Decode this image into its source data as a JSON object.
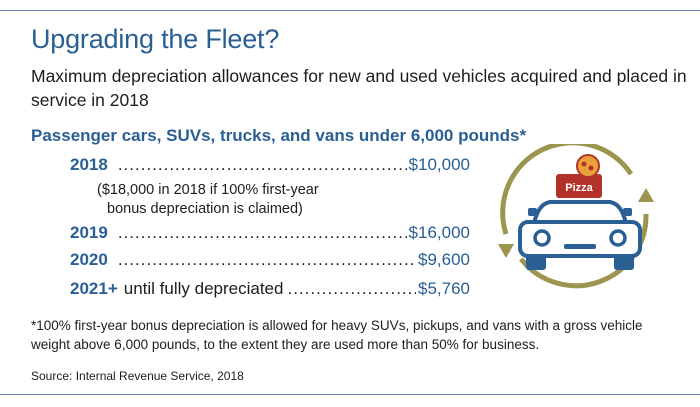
{
  "title": "Upgrading the Fleet?",
  "subtitle": "Maximum depreciation allowances for new and used vehicles acquired and placed in service in 2018",
  "section_heading": "Passenger cars, SUVs, trucks, and vans under 6,000 pounds*",
  "rows": [
    {
      "year": "2018",
      "qualifier": "",
      "amount": "$10,000"
    },
    {
      "year": "2019",
      "qualifier": "",
      "amount": "$16,000"
    },
    {
      "year": "2020",
      "qualifier": "",
      "amount": "$9,600"
    },
    {
      "year": "2021+",
      "qualifier": "until fully depreciated",
      "amount": "$5,760"
    }
  ],
  "bonus_note_line1": "($18,000 in 2018 if 100% first-year",
  "bonus_note_line2": "bonus depreciation is claimed)",
  "footnote": "*100% first-year bonus depreciation is allowed for heavy SUVs, pickups, and vans with a gross vehicle weight above 6,000 pounds, to the extent they are used more than 50% for business.",
  "source": "Source: Internal Revenue Service, 2018",
  "illustration": {
    "pizza_label": "Pizza",
    "icon_names": [
      "car-icon",
      "pizza-icon",
      "cycle-arrows-icon"
    ]
  },
  "colors": {
    "accent_blue": "#2a5f94",
    "olive": "#9c9550",
    "pizza_red": "#b3322a",
    "rule": "#6f8fb0"
  }
}
